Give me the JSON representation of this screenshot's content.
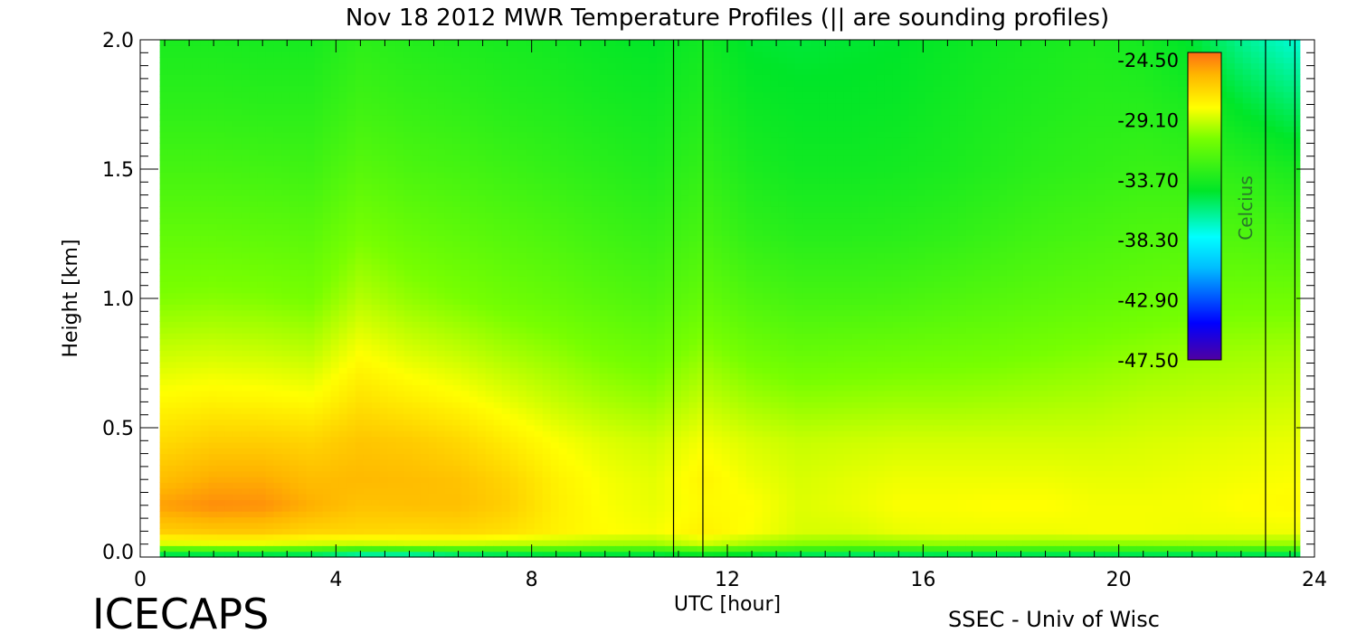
{
  "chart_data": {
    "type": "heatmap",
    "title": "Nov 18 2012 MWR Temperature Profiles (|| are sounding profiles)",
    "xlabel": "UTC [hour]",
    "ylabel": "Height [km]",
    "xlim": [
      0,
      24
    ],
    "ylim": [
      0,
      2.0
    ],
    "x_ticks": [
      "0",
      "4",
      "8",
      "12",
      "16",
      "20",
      "24"
    ],
    "y_ticks": [
      "0.0",
      "0.5",
      "1.0",
      "1.5",
      "2.0"
    ],
    "colorbar": {
      "label": "Celcius",
      "ticks": [
        "-24.50",
        "-29.10",
        "-33.70",
        "-38.30",
        "-42.90",
        "-47.50"
      ],
      "range": [
        -47.5,
        -24.5
      ]
    },
    "data_start_hour": 0.4,
    "data_end_hour": 23.7,
    "sounding_times": [
      10.9,
      11.5,
      23.0,
      23.6
    ],
    "heights_km": [
      0.0,
      0.05,
      0.1,
      0.2,
      0.3,
      0.45,
      0.6,
      0.8,
      1.0,
      1.25,
      1.5,
      1.75,
      2.0
    ],
    "hours": [
      0.5,
      1.5,
      2.5,
      3.5,
      4.5,
      5.5,
      6.5,
      7.5,
      8.5,
      9.5,
      10.5,
      11.5,
      12.5,
      13.5,
      14.5,
      15.5,
      16.5,
      17.5,
      18.5,
      19.5,
      20.5,
      21.5,
      22.5,
      23.5
    ],
    "temperature_c": [
      [
        -37.0,
        -29.5,
        -27.0,
        -25.6,
        -26.4,
        -27.4,
        -28.4,
        -29.6,
        -30.8,
        -31.7,
        -32.6,
        -33.4,
        -34.0
      ],
      [
        -37.0,
        -29.3,
        -26.8,
        -25.2,
        -25.9,
        -27.0,
        -28.2,
        -29.5,
        -30.7,
        -31.7,
        -32.6,
        -33.4,
        -34.0
      ],
      [
        -37.0,
        -29.3,
        -26.8,
        -25.3,
        -25.9,
        -27.0,
        -28.3,
        -29.6,
        -30.8,
        -31.8,
        -32.7,
        -33.5,
        -34.1
      ],
      [
        -37.2,
        -29.6,
        -27.2,
        -26.0,
        -26.4,
        -27.2,
        -28.5,
        -29.8,
        -31.0,
        -31.9,
        -32.8,
        -33.5,
        -34.1
      ],
      [
        -38.5,
        -29.8,
        -27.3,
        -26.6,
        -26.3,
        -26.7,
        -27.6,
        -28.7,
        -29.9,
        -31.0,
        -32.0,
        -32.8,
        -33.4
      ],
      [
        -38.5,
        -29.6,
        -27.4,
        -26.5,
        -26.4,
        -26.9,
        -28.0,
        -29.3,
        -30.5,
        -31.5,
        -32.4,
        -33.1,
        -33.7
      ],
      [
        -37.5,
        -29.7,
        -27.3,
        -26.5,
        -26.6,
        -27.3,
        -28.4,
        -29.7,
        -30.9,
        -31.8,
        -32.6,
        -33.3,
        -33.9
      ],
      [
        -37.0,
        -29.9,
        -27.6,
        -27.0,
        -27.2,
        -28.0,
        -29.0,
        -30.2,
        -31.3,
        -32.1,
        -32.9,
        -33.6,
        -34.1
      ],
      [
        -36.5,
        -30.0,
        -28.2,
        -28.1,
        -28.2,
        -28.7,
        -29.6,
        -30.6,
        -31.6,
        -32.4,
        -33.2,
        -33.8,
        -34.3
      ],
      [
        -36.5,
        -30.3,
        -28.6,
        -28.7,
        -28.8,
        -29.2,
        -30.1,
        -31.1,
        -32.0,
        -32.8,
        -33.5,
        -34.1,
        -34.6
      ],
      [
        -36.5,
        -30.4,
        -28.8,
        -29.0,
        -29.1,
        -29.5,
        -30.4,
        -31.4,
        -32.3,
        -33.1,
        -33.8,
        -34.3,
        -34.8
      ],
      [
        -36.0,
        -29.5,
        -28.2,
        -28.5,
        -28.3,
        -28.8,
        -29.6,
        -30.6,
        -31.6,
        -32.5,
        -33.2,
        -33.8,
        -34.3
      ],
      [
        -36.3,
        -30.3,
        -28.7,
        -28.6,
        -28.9,
        -29.3,
        -30.2,
        -31.3,
        -32.3,
        -33.3,
        -34.0,
        -34.5,
        -35.0
      ],
      [
        -36.8,
        -30.8,
        -29.3,
        -29.2,
        -29.3,
        -29.6,
        -30.5,
        -31.6,
        -32.6,
        -33.6,
        -34.3,
        -34.7,
        -35.1
      ],
      [
        -37.0,
        -30.9,
        -29.3,
        -29.0,
        -29.1,
        -29.5,
        -30.4,
        -31.5,
        -32.6,
        -33.6,
        -34.3,
        -34.7,
        -35.0
      ],
      [
        -37.0,
        -30.7,
        -29.0,
        -28.7,
        -28.9,
        -29.4,
        -30.3,
        -31.4,
        -32.5,
        -33.5,
        -34.2,
        -34.6,
        -34.9
      ],
      [
        -36.8,
        -30.6,
        -28.9,
        -28.7,
        -28.9,
        -29.4,
        -30.3,
        -31.3,
        -32.3,
        -33.3,
        -34.0,
        -34.3,
        -34.6
      ],
      [
        -36.8,
        -30.6,
        -28.9,
        -28.6,
        -28.9,
        -29.4,
        -30.2,
        -31.2,
        -32.1,
        -33.0,
        -33.7,
        -34.0,
        -34.3
      ],
      [
        -36.8,
        -30.7,
        -28.9,
        -28.6,
        -28.9,
        -29.4,
        -30.1,
        -31.0,
        -31.9,
        -32.7,
        -33.4,
        -33.8,
        -34.1
      ],
      [
        -36.8,
        -30.7,
        -28.8,
        -28.8,
        -29.0,
        -29.4,
        -30.0,
        -30.8,
        -31.7,
        -32.5,
        -33.2,
        -33.6,
        -33.9
      ],
      [
        -36.8,
        -30.7,
        -28.8,
        -28.8,
        -29.0,
        -29.3,
        -29.8,
        -30.6,
        -31.5,
        -32.3,
        -33.0,
        -33.6,
        -34.2
      ],
      [
        -36.8,
        -30.6,
        -28.9,
        -28.8,
        -28.9,
        -29.2,
        -29.7,
        -30.4,
        -31.3,
        -32.2,
        -33.1,
        -34.0,
        -35.0
      ],
      [
        -36.8,
        -30.5,
        -28.9,
        -28.6,
        -28.8,
        -29.1,
        -29.6,
        -30.3,
        -31.2,
        -32.3,
        -33.5,
        -35.0,
        -36.5
      ],
      [
        -36.8,
        -30.5,
        -28.9,
        -28.5,
        -28.7,
        -29.0,
        -29.5,
        -30.2,
        -31.2,
        -32.5,
        -34.0,
        -35.8,
        -37.5
      ]
    ]
  },
  "footer": {
    "left_label": "ICECAPS",
    "right_label": "SSEC - Univ of Wisc"
  }
}
